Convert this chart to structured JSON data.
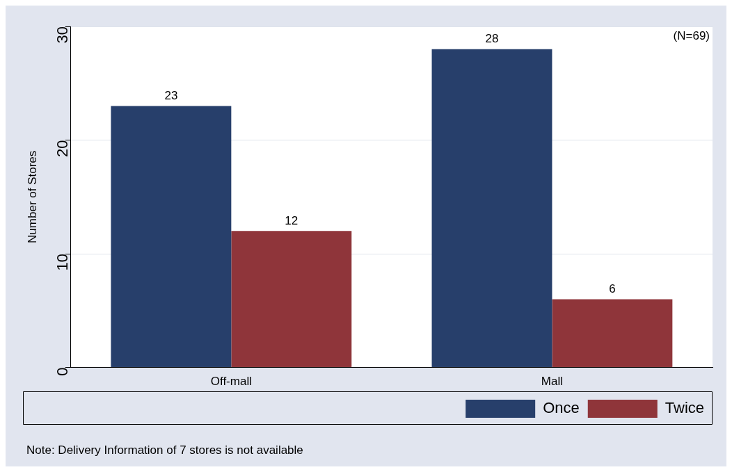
{
  "chart_data": {
    "type": "bar",
    "ylabel": "Number of Stores",
    "categories": [
      "Off-mall",
      "Mall"
    ],
    "series": [
      {
        "name": "Once",
        "color": "#273f6b",
        "values": [
          23,
          28
        ]
      },
      {
        "name": "Twice",
        "color": "#8f353a",
        "values": [
          12,
          6
        ]
      }
    ],
    "ylim": [
      0,
      30
    ],
    "yticks": [
      0,
      10,
      20,
      30
    ],
    "grid": "y",
    "legend": "bottom right",
    "data_labels": true,
    "annotations": [
      "(N=69)",
      "Note: Delivery Information of 7 stores is not available"
    ]
  }
}
